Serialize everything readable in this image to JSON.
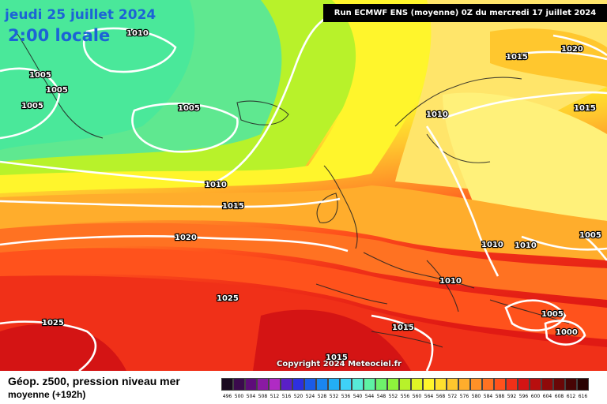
{
  "header": {
    "date": "jeudi 25 juillet 2024",
    "time": "2:00 locale",
    "run": "Run ECMWF ENS (moyenne) 0Z du mercredi 17 juillet 2024"
  },
  "copyright": "Copyright 2024 Meteociel.fr",
  "footer": {
    "title": "Géop. z500, pression niveau mer",
    "subtitle": "moyenne   (+192h)"
  },
  "legend": {
    "values": [
      "496",
      "500",
      "504",
      "508",
      "512",
      "516",
      "520",
      "524",
      "528",
      "532",
      "536",
      "540",
      "544",
      "548",
      "552",
      "556",
      "560",
      "564",
      "568",
      "572",
      "576",
      "580",
      "584",
      "588",
      "592",
      "596",
      "600",
      "604",
      "608",
      "612",
      "616"
    ],
    "colors": [
      "#1a0a20",
      "#3b0a4d",
      "#5e0c7a",
      "#8a1aa3",
      "#b02ac4",
      "#5a1fc7",
      "#2d2fe0",
      "#1b5be8",
      "#1a86f0",
      "#23aef5",
      "#3fd2f7",
      "#57ebd7",
      "#5ef2a4",
      "#6ef26b",
      "#8ef23c",
      "#b8f22a",
      "#e0f526",
      "#fff52c",
      "#ffe02e",
      "#ffc72e",
      "#ffad2c",
      "#ff9127",
      "#ff7222",
      "#ff521c",
      "#f03018",
      "#d41414",
      "#b80e0e",
      "#8f0a0a",
      "#6a0707",
      "#470505",
      "#2a0303"
    ]
  },
  "isobars": [
    "1010",
    "1005",
    "1005",
    "1005",
    "1005",
    "1010",
    "1015",
    "1020",
    "1025",
    "1025",
    "1015",
    "1015",
    "1010",
    "1015",
    "1020",
    "1010",
    "1010",
    "1010",
    "1005",
    "1005",
    "1000",
    "1015"
  ]
}
